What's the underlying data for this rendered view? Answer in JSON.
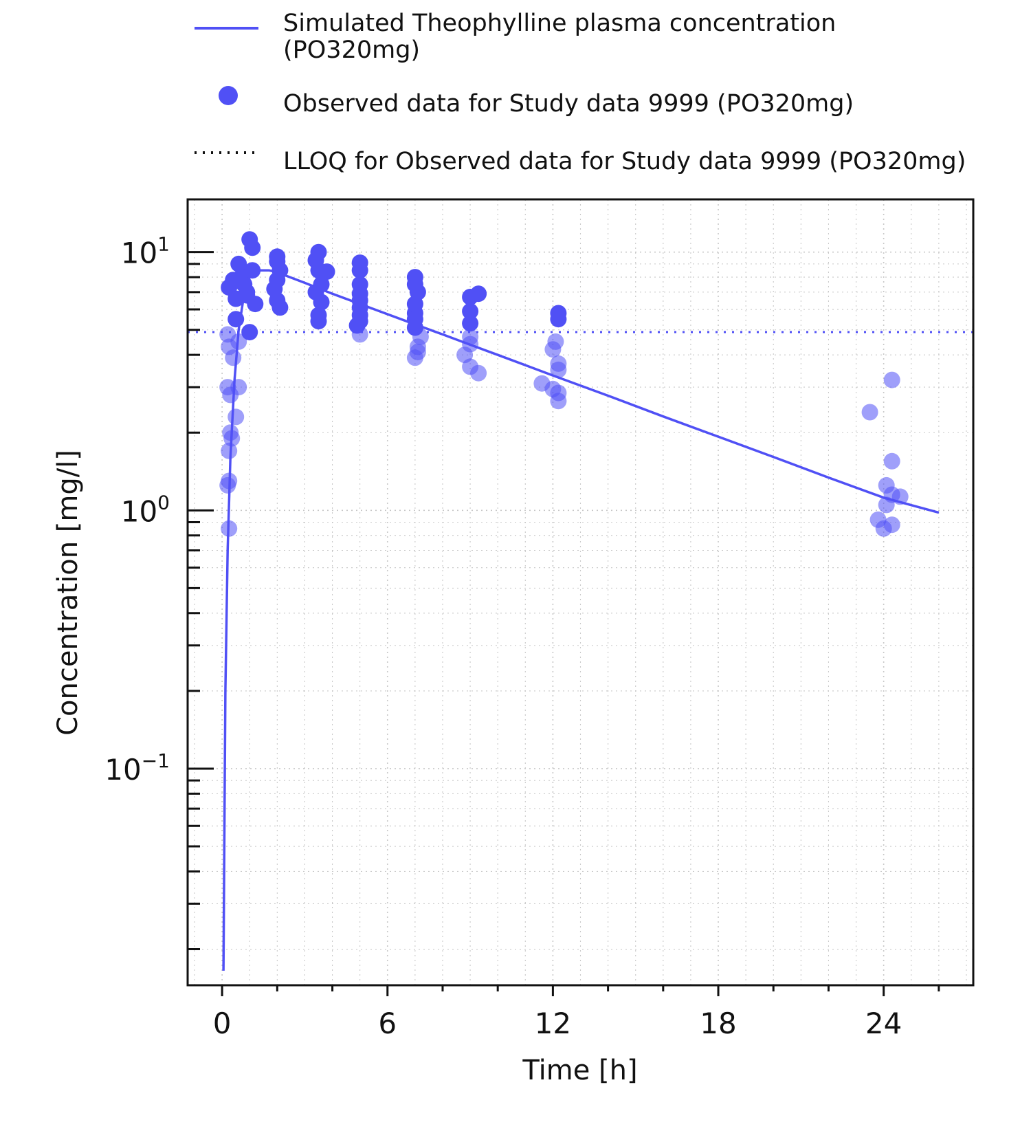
{
  "chart_data": {
    "type": "scatter",
    "xlabel": "Time [h]",
    "ylabel": "Concentration [mg/l]",
    "x_ticks": [
      0,
      6,
      12,
      18,
      24
    ],
    "x_tick_labels": [
      "0",
      "6",
      "12",
      "18",
      "24"
    ],
    "xlim": [
      -1.25,
      27.25
    ],
    "y_scale": "log",
    "ylim": [
      0.0145,
      16
    ],
    "y_ticks": [
      {
        "value": 10,
        "base": "10",
        "exp": "1"
      },
      {
        "value": 1,
        "base": "10",
        "exp": "0"
      },
      {
        "value": 0.1,
        "base": "10",
        "exp": "−1"
      }
    ],
    "grid": true,
    "legend_position": "top",
    "colors": {
      "series": "#5050f5",
      "axis": "#111111",
      "grid": "#c8c8c8"
    },
    "series": [
      {
        "name": "Simulated Theophylline plasma concentration (PO320mg)",
        "name_lines": [
          "Simulated Theophylline plasma concentration",
          "(PO320mg)"
        ],
        "kind": "line",
        "x": [
          0.05,
          0.12,
          0.2,
          0.3,
          0.45,
          0.6,
          0.8,
          1.0,
          1.3,
          1.7,
          2.0,
          3.0,
          4.0,
          5.0,
          6.0,
          7.0,
          8.0,
          9.0,
          10.0,
          11.0,
          12.0,
          14.0,
          16.0,
          18.0,
          20.0,
          22.0,
          24.0,
          26.0
        ],
        "y": [
          0.0165,
          0.2,
          0.7,
          1.6,
          3.2,
          5.0,
          6.9,
          8.0,
          8.5,
          8.5,
          8.35,
          7.6,
          6.9,
          6.3,
          5.75,
          5.25,
          4.8,
          4.38,
          4.0,
          3.65,
          3.33,
          2.78,
          2.31,
          1.93,
          1.61,
          1.34,
          1.12,
          0.98
        ]
      },
      {
        "name": "Observed data for Study data 9999 (PO320mg)",
        "kind": "scatter",
        "points": [
          [
            0.25,
            7.3
          ],
          [
            0.4,
            7.8
          ],
          [
            0.5,
            6.6
          ],
          [
            0.6,
            9.0
          ],
          [
            0.7,
            8.0
          ],
          [
            0.8,
            7.5
          ],
          [
            0.9,
            6.8
          ],
          [
            1.0,
            11.2
          ],
          [
            1.1,
            8.5
          ],
          [
            1.2,
            6.3
          ],
          [
            1.1,
            10.4
          ],
          [
            0.5,
            5.5
          ],
          [
            1.0,
            4.9
          ],
          [
            0.9,
            7.0
          ],
          [
            0.2,
            4.8
          ],
          [
            0.25,
            4.3
          ],
          [
            0.4,
            3.9
          ],
          [
            0.6,
            4.5
          ],
          [
            0.2,
            3.0
          ],
          [
            0.3,
            2.8
          ],
          [
            0.6,
            3.0
          ],
          [
            0.5,
            2.3
          ],
          [
            0.3,
            2.0
          ],
          [
            0.35,
            1.9
          ],
          [
            0.25,
            1.7
          ],
          [
            0.25,
            1.3
          ],
          [
            0.2,
            1.25
          ],
          [
            0.25,
            0.85
          ],
          [
            2.0,
            9.6
          ],
          [
            2.0,
            9.2
          ],
          [
            2.1,
            8.5
          ],
          [
            2.0,
            7.8
          ],
          [
            1.9,
            7.2
          ],
          [
            2.0,
            6.5
          ],
          [
            2.1,
            6.1
          ],
          [
            3.5,
            10.0
          ],
          [
            3.4,
            9.3
          ],
          [
            3.5,
            8.5
          ],
          [
            3.8,
            8.4
          ],
          [
            3.6,
            7.5
          ],
          [
            3.4,
            7.0
          ],
          [
            3.6,
            6.4
          ],
          [
            3.5,
            5.7
          ],
          [
            3.5,
            5.4
          ],
          [
            5.0,
            9.1
          ],
          [
            5.0,
            8.5
          ],
          [
            5.0,
            7.5
          ],
          [
            5.0,
            6.9
          ],
          [
            5.0,
            6.5
          ],
          [
            5.0,
            6.1
          ],
          [
            5.0,
            5.7
          ],
          [
            5.0,
            5.4
          ],
          [
            4.9,
            5.2
          ],
          [
            5.0,
            4.8
          ],
          [
            7.0,
            8.0
          ],
          [
            7.0,
            7.5
          ],
          [
            7.1,
            7.0
          ],
          [
            7.0,
            6.3
          ],
          [
            7.0,
            5.8
          ],
          [
            7.0,
            5.5
          ],
          [
            7.0,
            5.1
          ],
          [
            7.2,
            4.7
          ],
          [
            7.1,
            4.3
          ],
          [
            7.1,
            4.1
          ],
          [
            7.0,
            3.9
          ],
          [
            9.0,
            6.7
          ],
          [
            9.3,
            6.9
          ],
          [
            9.0,
            5.9
          ],
          [
            9.0,
            5.3
          ],
          [
            9.0,
            4.7
          ],
          [
            9.0,
            4.4
          ],
          [
            8.8,
            4.0
          ],
          [
            9.0,
            3.6
          ],
          [
            9.3,
            3.4
          ],
          [
            12.2,
            5.8
          ],
          [
            12.2,
            5.5
          ],
          [
            12.1,
            4.5
          ],
          [
            12.0,
            4.2
          ],
          [
            12.2,
            3.7
          ],
          [
            12.2,
            3.5
          ],
          [
            11.6,
            3.1
          ],
          [
            12.0,
            2.95
          ],
          [
            12.2,
            2.85
          ],
          [
            12.2,
            2.65
          ],
          [
            23.5,
            2.4
          ],
          [
            24.3,
            3.2
          ],
          [
            24.3,
            1.55
          ],
          [
            24.1,
            1.25
          ],
          [
            24.3,
            1.15
          ],
          [
            24.6,
            1.13
          ],
          [
            24.1,
            1.05
          ],
          [
            23.8,
            0.92
          ],
          [
            24.3,
            0.88
          ],
          [
            24.0,
            0.85
          ]
        ]
      },
      {
        "name": "LLOQ for Observed data for Study data 9999 (PO320mg)",
        "kind": "hline",
        "y": 4.9
      }
    ]
  }
}
